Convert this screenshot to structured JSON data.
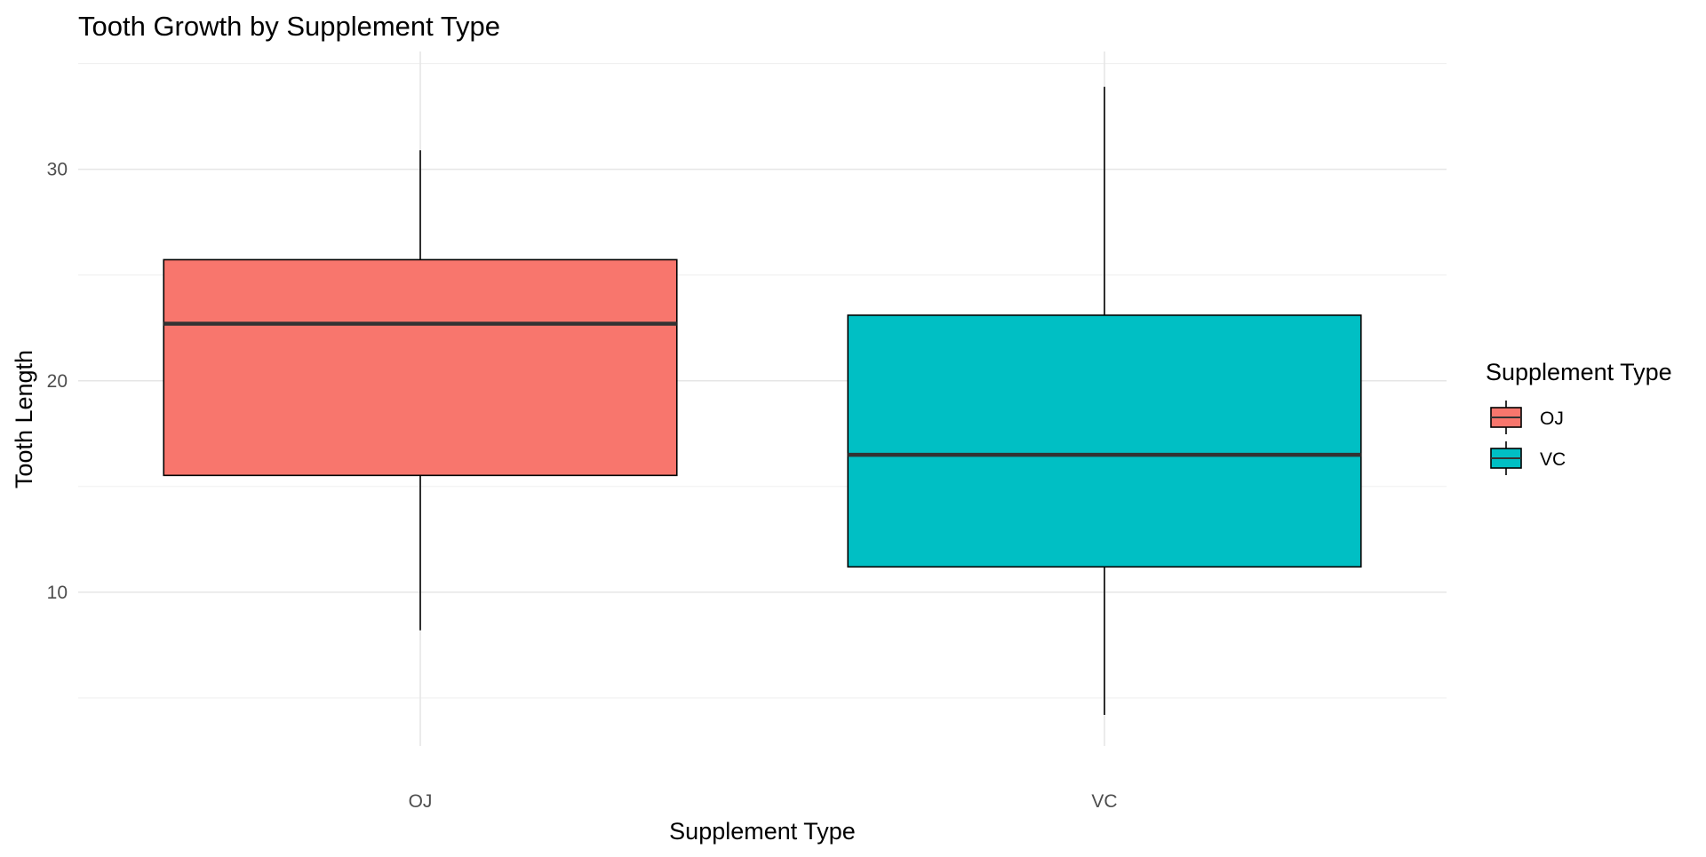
{
  "chart_data": {
    "type": "box",
    "title": "Tooth Growth by Supplement Type",
    "xlabel": "Supplement Type",
    "ylabel": "Tooth Length",
    "categories": [
      "OJ",
      "VC"
    ],
    "ylim": [
      2.73,
      35.57
    ],
    "yticks": [
      10,
      20,
      30
    ],
    "grid": true,
    "legend": {
      "title": "Supplement Type",
      "position": "right",
      "entries": [
        {
          "label": "OJ",
          "color": "#F8766D"
        },
        {
          "label": "VC",
          "color": "#00BFC4"
        }
      ]
    },
    "series": [
      {
        "category": "OJ",
        "min": 8.2,
        "q1": 15.525,
        "median": 22.7,
        "q3": 25.725,
        "max": 30.9,
        "color": "#F8766D"
      },
      {
        "category": "VC",
        "min": 4.2,
        "q1": 11.2,
        "median": 16.5,
        "q3": 23.1,
        "max": 33.9,
        "color": "#00BFC4"
      }
    ]
  }
}
